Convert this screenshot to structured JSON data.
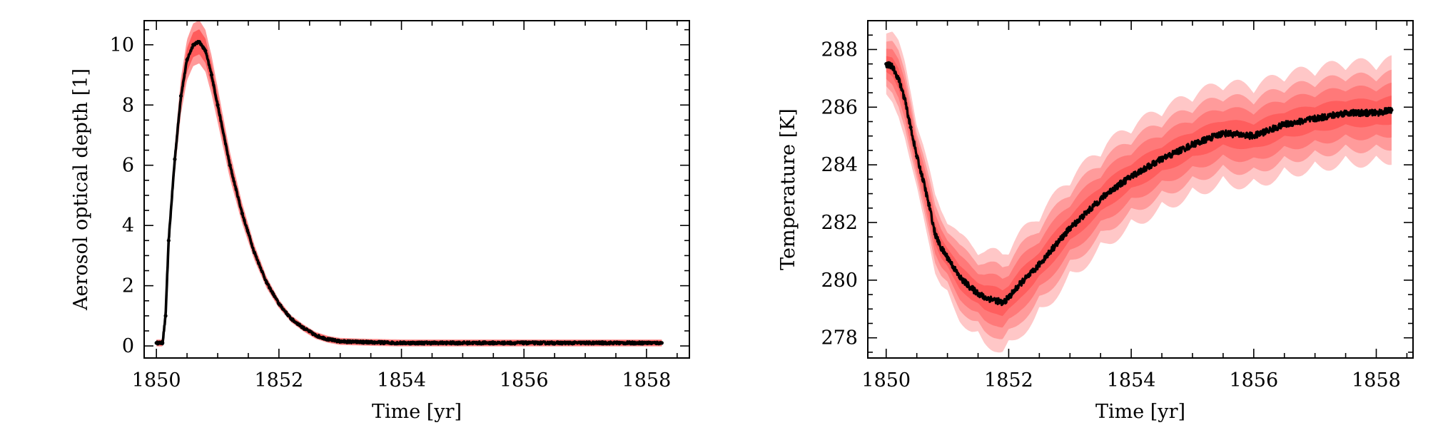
{
  "chart_data": [
    {
      "type": "line",
      "title": "",
      "xlabel": "Time [yr]",
      "ylabel": "Aerosol optical depth [1]",
      "xlim": [
        1849.8,
        1858.7
      ],
      "ylim": [
        -0.4,
        10.8
      ],
      "xticks": [
        1850,
        1852,
        1854,
        1856,
        1858
      ],
      "yticks": [
        0,
        2,
        4,
        6,
        8,
        10
      ],
      "grid": false,
      "legend": "none",
      "colors": {
        "mean": "#000000",
        "ensemble_band": "#ff0000"
      },
      "series": [
        {
          "x": [
            1850.0,
            1850.1,
            1850.15,
            1850.2,
            1850.3,
            1850.4,
            1850.5,
            1850.6,
            1850.7,
            1850.8,
            1850.9,
            1851.0,
            1851.2,
            1851.4,
            1851.6,
            1851.8,
            1852.0,
            1852.2,
            1852.4,
            1852.6,
            1852.8,
            1853.0,
            1853.5,
            1854.0,
            1855.0,
            1856.0,
            1857.0,
            1858.0,
            1858.25
          ],
          "values": [
            0.1,
            0.1,
            1.0,
            3.5,
            6.2,
            8.3,
            9.5,
            10.0,
            10.1,
            9.8,
            9.0,
            8.0,
            6.0,
            4.4,
            3.1,
            2.1,
            1.4,
            0.9,
            0.6,
            0.35,
            0.22,
            0.15,
            0.12,
            0.1,
            0.1,
            0.1,
            0.1,
            0.1,
            0.1
          ]
        }
      ]
    },
    {
      "type": "line",
      "title": "",
      "xlabel": "Time [yr]",
      "ylabel": "Temperature [K]",
      "xlim": [
        1849.7,
        1858.6
      ],
      "ylim": [
        277.3,
        289.0
      ],
      "xticks": [
        1850,
        1852,
        1854,
        1856,
        1858
      ],
      "yticks": [
        278,
        280,
        282,
        284,
        286,
        288
      ],
      "grid": false,
      "legend": "none",
      "colors": {
        "mean": "#000000",
        "ensemble_band": "#ff0000"
      },
      "series": [
        {
          "x": [
            1850.0,
            1850.1,
            1850.2,
            1850.3,
            1850.4,
            1850.5,
            1850.6,
            1850.7,
            1850.8,
            1850.9,
            1851.0,
            1851.2,
            1851.4,
            1851.6,
            1851.8,
            1851.9,
            1852.0,
            1852.2,
            1852.4,
            1852.6,
            1852.8,
            1853.0,
            1853.3,
            1853.6,
            1854.0,
            1854.5,
            1855.0,
            1855.5,
            1856.0,
            1856.5,
            1857.0,
            1857.5,
            1858.0,
            1858.25
          ],
          "values": [
            287.5,
            287.4,
            287.0,
            286.3,
            285.3,
            284.3,
            283.5,
            282.6,
            281.6,
            281.1,
            280.8,
            280.1,
            279.7,
            279.4,
            279.3,
            279.2,
            279.4,
            279.9,
            280.3,
            280.8,
            281.3,
            281.8,
            282.4,
            283.0,
            283.6,
            284.2,
            284.7,
            285.1,
            285.0,
            285.4,
            285.6,
            285.8,
            285.8,
            285.9
          ]
        }
      ]
    }
  ]
}
